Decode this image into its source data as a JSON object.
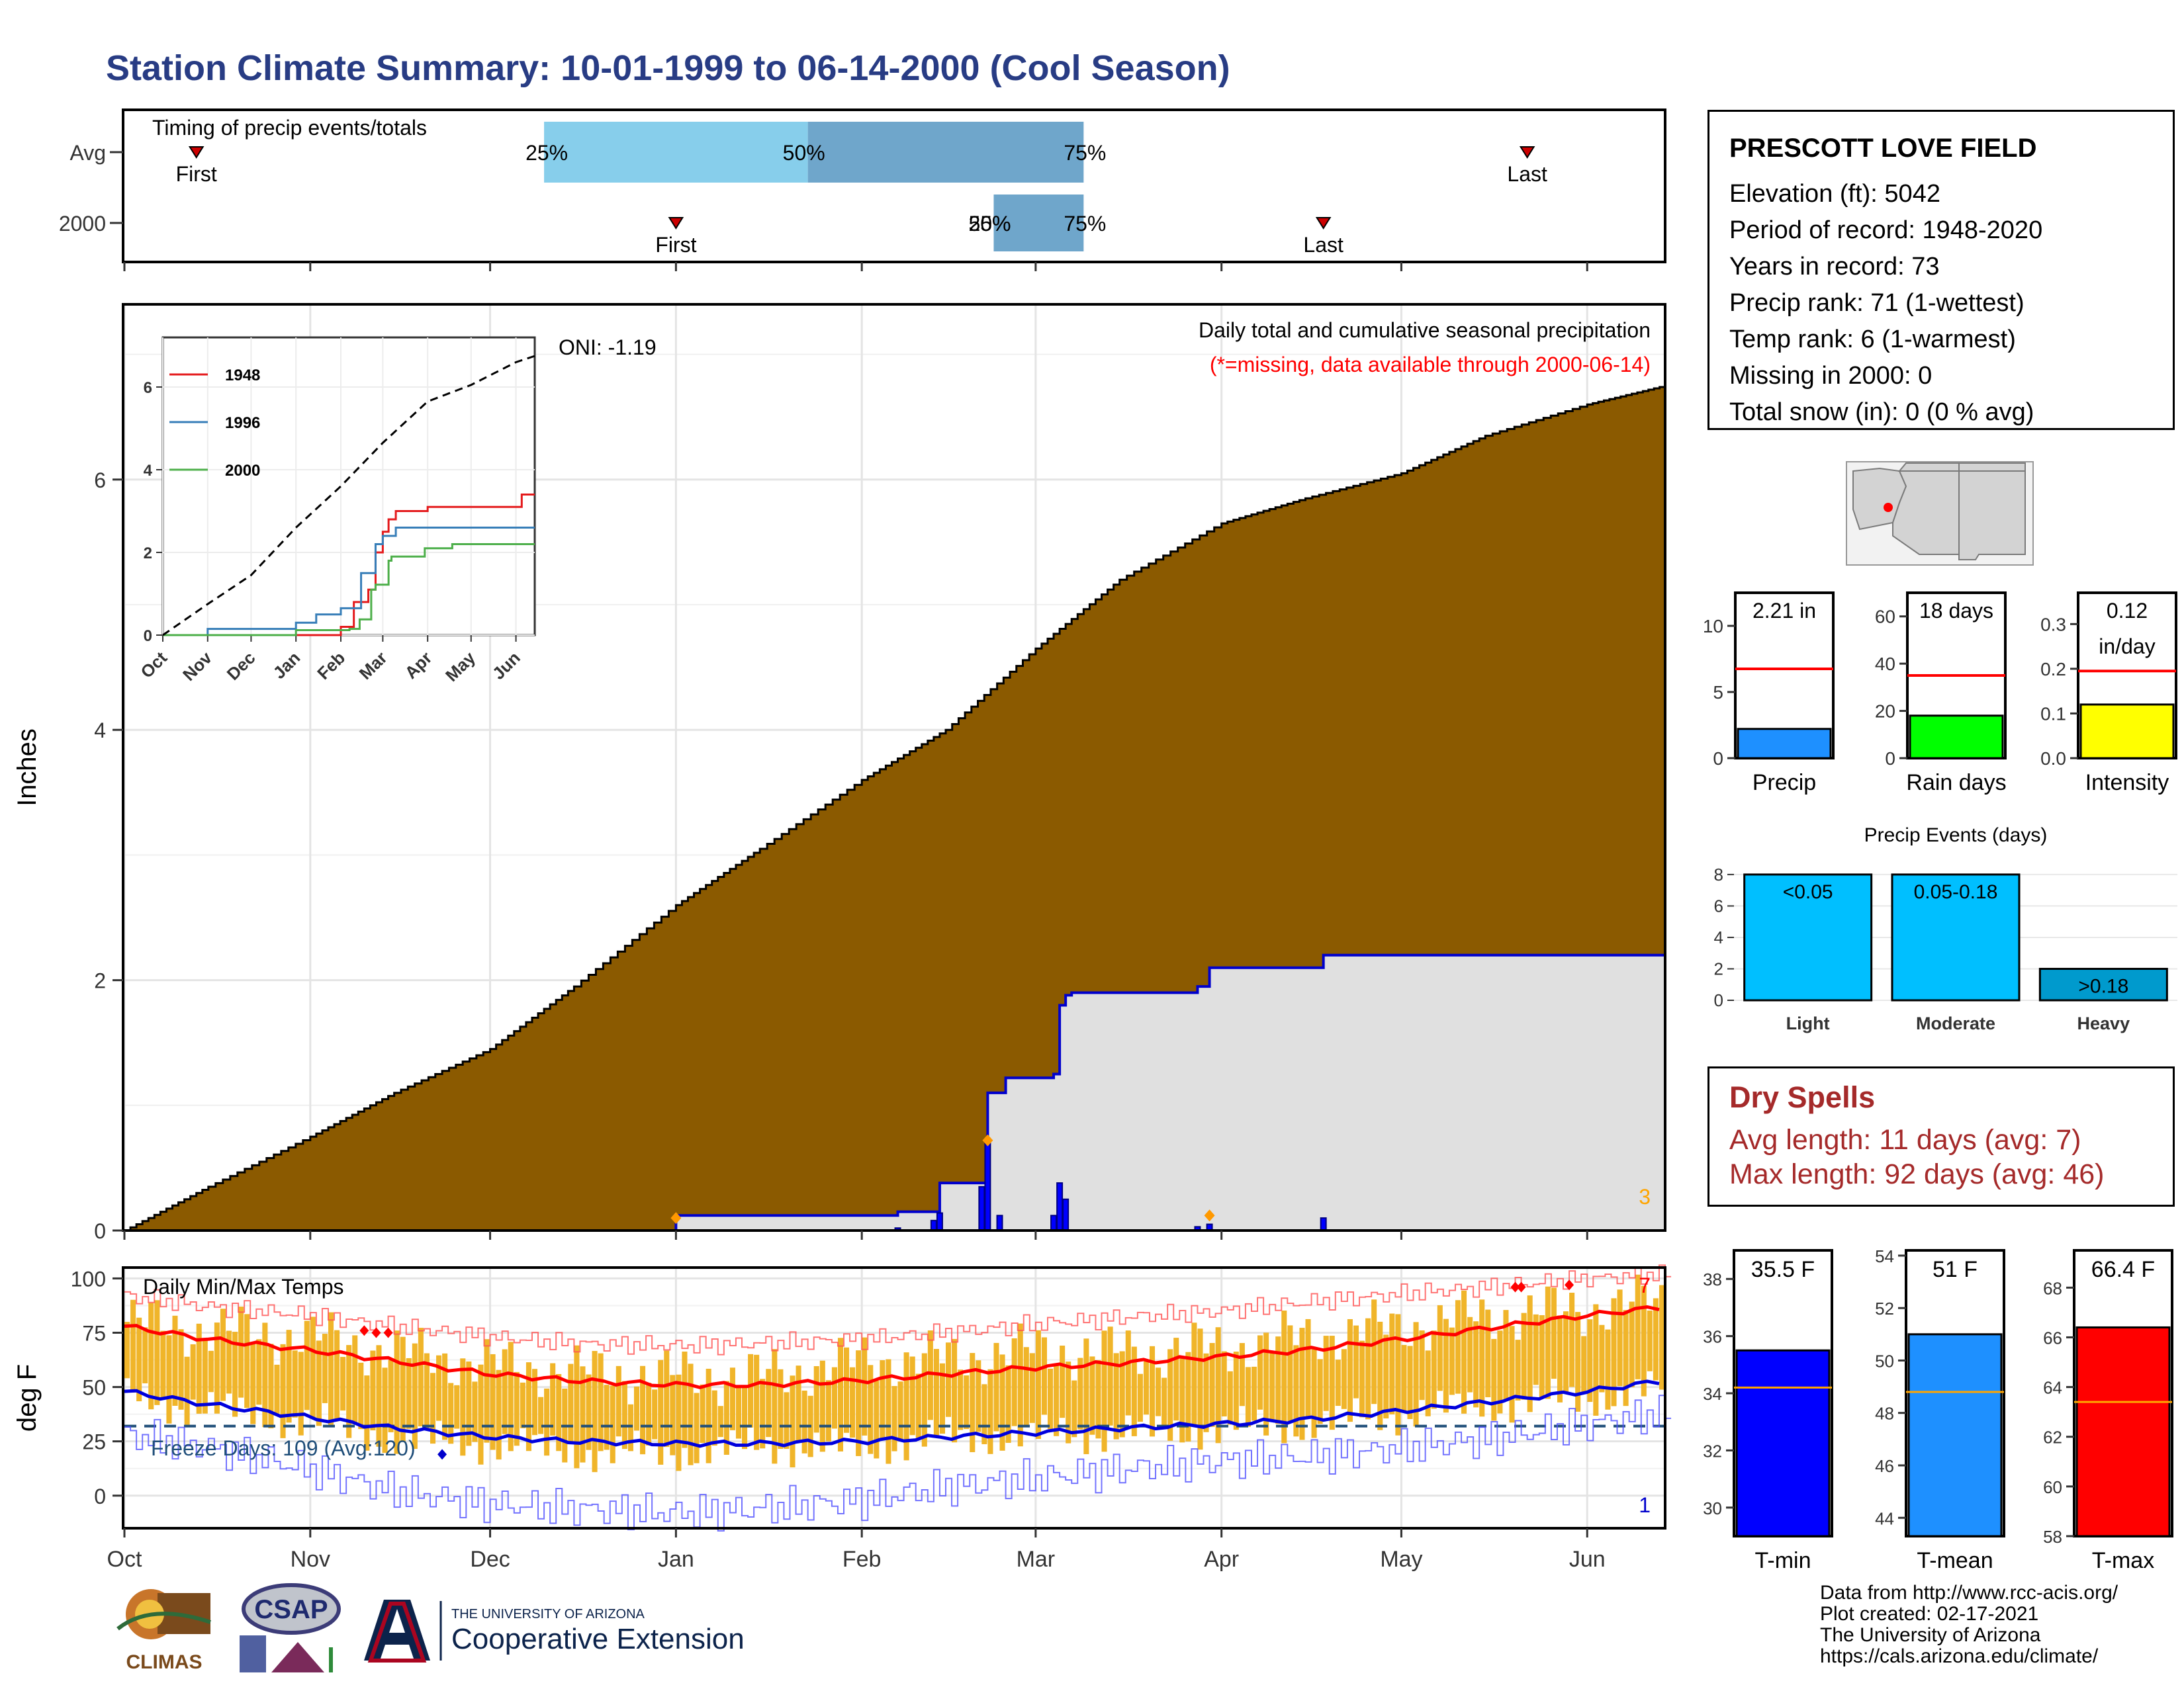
{
  "title": "Station Climate Summary: 10-01-1999 to 06-14-2000 (Cool Season)",
  "station": {
    "name": "PRESCOTT LOVE FIELD",
    "lines": [
      "Elevation (ft): 5042",
      "Period of record: 1948-2020",
      "Years in record: 73",
      "Precip rank: 71 (1-wettest)",
      "Temp rank: 6 (1-warmest)",
      "Missing in 2000: 0",
      "Total snow (in): 0 (0 % avg)"
    ]
  },
  "dry_spells": {
    "title": "Dry Spells",
    "avg": "Avg length: 11 days (avg: 7)",
    "max": "Max length: 92 days (avg: 46)"
  },
  "footer": [
    "Data from http://www.rcc-acis.org/",
    "Plot created: 02-17-2021",
    "The University of Arizona",
    "https://cals.arizona.edu/climate/"
  ],
  "logos": {
    "climas": "CLIMAS",
    "csap": "CSAP",
    "ua_small": "THE UNIVERSITY OF ARIZONA",
    "ua_big": "Cooperative Extension"
  },
  "colors": {
    "title": "#283c84",
    "cum_avg_fill": "#8b5a00",
    "obs_line": "#0000cc",
    "timing_light": "#87ceeb",
    "timing_dark": "#6fa6cb",
    "tmax": "#ff0000",
    "tmean": "#1e90ff",
    "tmin": "#0000ff",
    "range_bar": "#f0b52a",
    "dry": "#a52a2a"
  },
  "months": [
    "Oct",
    "Nov",
    "Dec",
    "Jan",
    "Feb",
    "Mar",
    "Apr",
    "May",
    "Jun"
  ],
  "chart_data": [
    {
      "type": "timing",
      "title": "Timing of precip events/totals",
      "rows": [
        {
          "label": "Avg",
          "first": "10-13",
          "p25": "12-10",
          "p50": "01-23",
          "p75": "03-09",
          "last": "05-22"
        },
        {
          "label": "2000",
          "first": "01-01",
          "p25": "02-23",
          "p50": "02-23",
          "p75": "03-09",
          "last": "04-18"
        }
      ],
      "text": {
        "first": "First",
        "last": "Last",
        "p25": "25%",
        "p50": "50%",
        "p75": "75%",
        "p25b": "25%",
        "p50b": "50%"
      }
    },
    {
      "type": "area",
      "title": "Daily total and cumulative seasonal precipitation",
      "subtitle": "(*=missing, data available through 2000-06-14)",
      "oni": "ONI: -1.19",
      "ylabel": "Inches",
      "ylim": [
        0,
        7.4
      ],
      "yticks": [
        0,
        2,
        4,
        6
      ],
      "corner_count": "3",
      "avg_cumulative": {
        "x": [
          "10-01",
          "10-15",
          "11-01",
          "11-15",
          "12-01",
          "12-15",
          "01-01",
          "01-15",
          "02-01",
          "02-15",
          "03-01",
          "03-15",
          "04-01",
          "04-15",
          "05-01",
          "05-15",
          "06-01",
          "06-14"
        ],
        "y": [
          0,
          0.35,
          0.75,
          1.1,
          1.45,
          1.95,
          2.6,
          3.05,
          3.6,
          4.0,
          4.65,
          5.2,
          5.65,
          5.85,
          6.05,
          6.35,
          6.6,
          6.75
        ]
      },
      "observed_cumulative": {
        "x": [
          "10-01",
          "12-31",
          "01-01",
          "02-06",
          "02-07",
          "02-14",
          "02-21",
          "02-22",
          "02-24",
          "02-25",
          "03-04",
          "03-05",
          "03-06",
          "03-07",
          "03-28",
          "03-30",
          "04-01",
          "04-18",
          "06-14"
        ],
        "y": [
          0,
          0,
          0.12,
          0.12,
          0.15,
          0.38,
          0.38,
          1.1,
          1.1,
          1.22,
          1.25,
          1.8,
          1.88,
          1.9,
          1.95,
          2.1,
          2.1,
          2.2,
          2.2
        ]
      },
      "daily_bars": {
        "x": [
          "02-07",
          "02-13",
          "02-14",
          "02-21",
          "02-22",
          "02-24",
          "03-04",
          "03-05",
          "03-06",
          "03-28",
          "03-30",
          "04-18"
        ],
        "y": [
          0.02,
          0.08,
          0.14,
          0.35,
          0.72,
          0.12,
          0.12,
          0.38,
          0.25,
          0.03,
          0.05,
          0.1
        ]
      },
      "markers": {
        "x": [
          "01-01",
          "02-22",
          "03-30"
        ],
        "y": [
          0.1,
          0.72,
          0.12
        ]
      }
    },
    {
      "type": "line",
      "inset": true,
      "ylim": [
        0,
        7.2
      ],
      "yticks": [
        0,
        2,
        4,
        6
      ],
      "series": [
        {
          "name": "1948",
          "color": "#e41a1c",
          "x": [
            "10-01",
            "01-15",
            "02-01",
            "02-10",
            "02-20",
            "02-25",
            "03-01",
            "03-05",
            "03-10",
            "03-20",
            "04-01",
            "05-01",
            "06-01",
            "06-05",
            "06-14"
          ],
          "y": [
            0,
            0,
            0.2,
            0.8,
            1.1,
            2.0,
            2.5,
            2.8,
            3.0,
            3.0,
            3.1,
            3.1,
            3.1,
            3.4,
            3.4
          ]
        },
        {
          "name": "1996",
          "color": "#377eb8",
          "x": [
            "10-01",
            "11-01",
            "01-01",
            "01-15",
            "02-01",
            "02-15",
            "02-25",
            "03-01",
            "03-10",
            "04-01",
            "06-14"
          ],
          "y": [
            0,
            0.15,
            0.3,
            0.5,
            0.65,
            1.5,
            2.2,
            2.4,
            2.6,
            2.6,
            2.6
          ]
        },
        {
          "name": "2000",
          "color": "#4daf4a",
          "x": [
            "10-01",
            "01-01",
            "02-07",
            "02-14",
            "02-22",
            "02-25",
            "03-05",
            "03-07",
            "03-30",
            "04-18",
            "06-14"
          ],
          "y": [
            0,
            0.12,
            0.15,
            0.38,
            1.1,
            1.22,
            1.8,
            1.9,
            2.1,
            2.2,
            2.2
          ]
        },
        {
          "name": "",
          "color": "#000000",
          "dash": true,
          "x": [
            "10-01",
            "11-01",
            "12-01",
            "01-01",
            "02-01",
            "03-01",
            "04-01",
            "05-01",
            "06-01",
            "06-14"
          ],
          "y": [
            0,
            0.75,
            1.45,
            2.6,
            3.6,
            4.65,
            5.65,
            6.05,
            6.6,
            6.75
          ]
        }
      ]
    },
    {
      "type": "bar",
      "title": "Precip",
      "label": "2.21 in",
      "value": 2.21,
      "avg": 6.75,
      "ylim": [
        0,
        12.5
      ],
      "yticks": [
        0,
        5,
        10
      ],
      "color": "#1e90ff"
    },
    {
      "type": "bar",
      "title": "Rain days",
      "label": "18 days",
      "value": 18,
      "avg": 35,
      "ylim": [
        0,
        70
      ],
      "yticks": [
        0,
        20,
        40,
        60
      ],
      "color": "#00ff00"
    },
    {
      "type": "bar",
      "title": "Intensity",
      "label": "0.12",
      "label2": "in/day",
      "value": 0.12,
      "avg": 0.195,
      "ylim": [
        0,
        0.37
      ],
      "yticks": [
        0.0,
        0.1,
        0.2,
        0.3
      ],
      "color": "#ffff00"
    },
    {
      "type": "bar",
      "title": "Precip Events (days)",
      "categories": [
        "Light",
        "Moderate",
        "Heavy"
      ],
      "labels": [
        "<0.05",
        "0.05-0.18",
        ">0.18"
      ],
      "values": [
        8,
        8,
        2
      ],
      "ylim": [
        0,
        8.5
      ],
      "yticks": [
        0,
        2,
        4,
        6,
        8
      ],
      "colors": [
        "#00bfff",
        "#00bfff",
        "#009acd"
      ]
    },
    {
      "type": "line",
      "title": "Daily Min/Max Temps",
      "ylabel": "deg F",
      "ylim": [
        -15,
        105
      ],
      "yticks": [
        0,
        25,
        50,
        75,
        100
      ],
      "freeze_text": "Freeze Days: 109 (Avg:120)",
      "freeze_line": 32,
      "count_hot": "7",
      "count_cold": "1",
      "avg_max": {
        "x": [
          "10-01",
          "10-15",
          "11-01",
          "11-15",
          "12-01",
          "12-15",
          "01-01",
          "01-15",
          "02-01",
          "02-15",
          "03-01",
          "03-15",
          "04-01",
          "04-15",
          "05-01",
          "05-15",
          "06-01",
          "06-14"
        ],
        "y": [
          78,
          72,
          67,
          62,
          56,
          53,
          51,
          51,
          53,
          56,
          59,
          61,
          64,
          67,
          72,
          77,
          83,
          87
        ]
      },
      "avg_min": {
        "x": [
          "10-01",
          "10-15",
          "11-01",
          "11-15",
          "12-01",
          "12-15",
          "01-01",
          "01-15",
          "02-01",
          "02-15",
          "03-01",
          "03-15",
          "04-01",
          "04-15",
          "05-01",
          "05-15",
          "06-01",
          "06-14"
        ],
        "y": [
          48,
          42,
          36,
          31,
          27,
          25,
          24,
          24,
          25,
          27,
          29,
          31,
          33,
          35,
          39,
          43,
          48,
          53
        ]
      },
      "record_high": {
        "x": [
          "10-01",
          "10-15",
          "11-01",
          "11-15",
          "12-01",
          "12-15",
          "01-01",
          "01-15",
          "02-01",
          "02-15",
          "03-01",
          "03-15",
          "04-01",
          "04-15",
          "05-01",
          "05-15",
          "06-01",
          "06-14"
        ],
        "y": [
          92,
          87,
          83,
          78,
          73,
          70,
          69,
          70,
          72,
          75,
          79,
          82,
          85,
          89,
          93,
          96,
          100,
          102
        ]
      },
      "record_low": {
        "x": [
          "10-01",
          "10-15",
          "11-01",
          "11-15",
          "12-01",
          "12-15",
          "01-01",
          "01-15",
          "02-01",
          "02-15",
          "03-01",
          "03-15",
          "04-01",
          "04-15",
          "05-01",
          "05-15",
          "06-01",
          "06-14"
        ],
        "y": [
          28,
          22,
          12,
          2,
          -4,
          -6,
          -8,
          -6,
          -2,
          4,
          8,
          12,
          16,
          18,
          22,
          26,
          33,
          38
        ]
      },
      "observed_range": {
        "x": [
          "10-01",
          "10-15",
          "11-01",
          "11-15",
          "12-01",
          "12-15",
          "01-01",
          "01-15",
          "02-01",
          "02-15",
          "03-01",
          "03-15",
          "04-01",
          "04-15",
          "05-01",
          "05-15",
          "06-01",
          "06-14"
        ],
        "max": [
          80,
          76,
          73,
          66,
          60,
          57,
          55,
          55,
          62,
          63,
          67,
          66,
          68,
          73,
          78,
          83,
          86,
          90
        ],
        "min": [
          45,
          40,
          34,
          26,
          24,
          20,
          20,
          23,
          22,
          27,
          28,
          29,
          31,
          33,
          38,
          42,
          45,
          50
        ]
      }
    },
    {
      "type": "bar",
      "title": "T-min",
      "label": "35.5 F",
      "value": 35.5,
      "avg": 34.2,
      "ylim": [
        29,
        39
      ],
      "yticks": [
        30,
        32,
        34,
        36,
        38
      ],
      "color": "#0000ff"
    },
    {
      "type": "bar",
      "title": "T-mean",
      "label": "51 F",
      "value": 51,
      "avg": 48.8,
      "ylim": [
        43.3,
        54.2
      ],
      "yticks": [
        44,
        46,
        48,
        50,
        52,
        54
      ],
      "color": "#1e90ff"
    },
    {
      "type": "bar",
      "title": "T-max",
      "label": "66.4 F",
      "value": 66.4,
      "avg": 63.4,
      "ylim": [
        58,
        69.5
      ],
      "yticks": [
        58,
        60,
        62,
        64,
        66,
        68
      ],
      "color": "#ff0000"
    }
  ]
}
